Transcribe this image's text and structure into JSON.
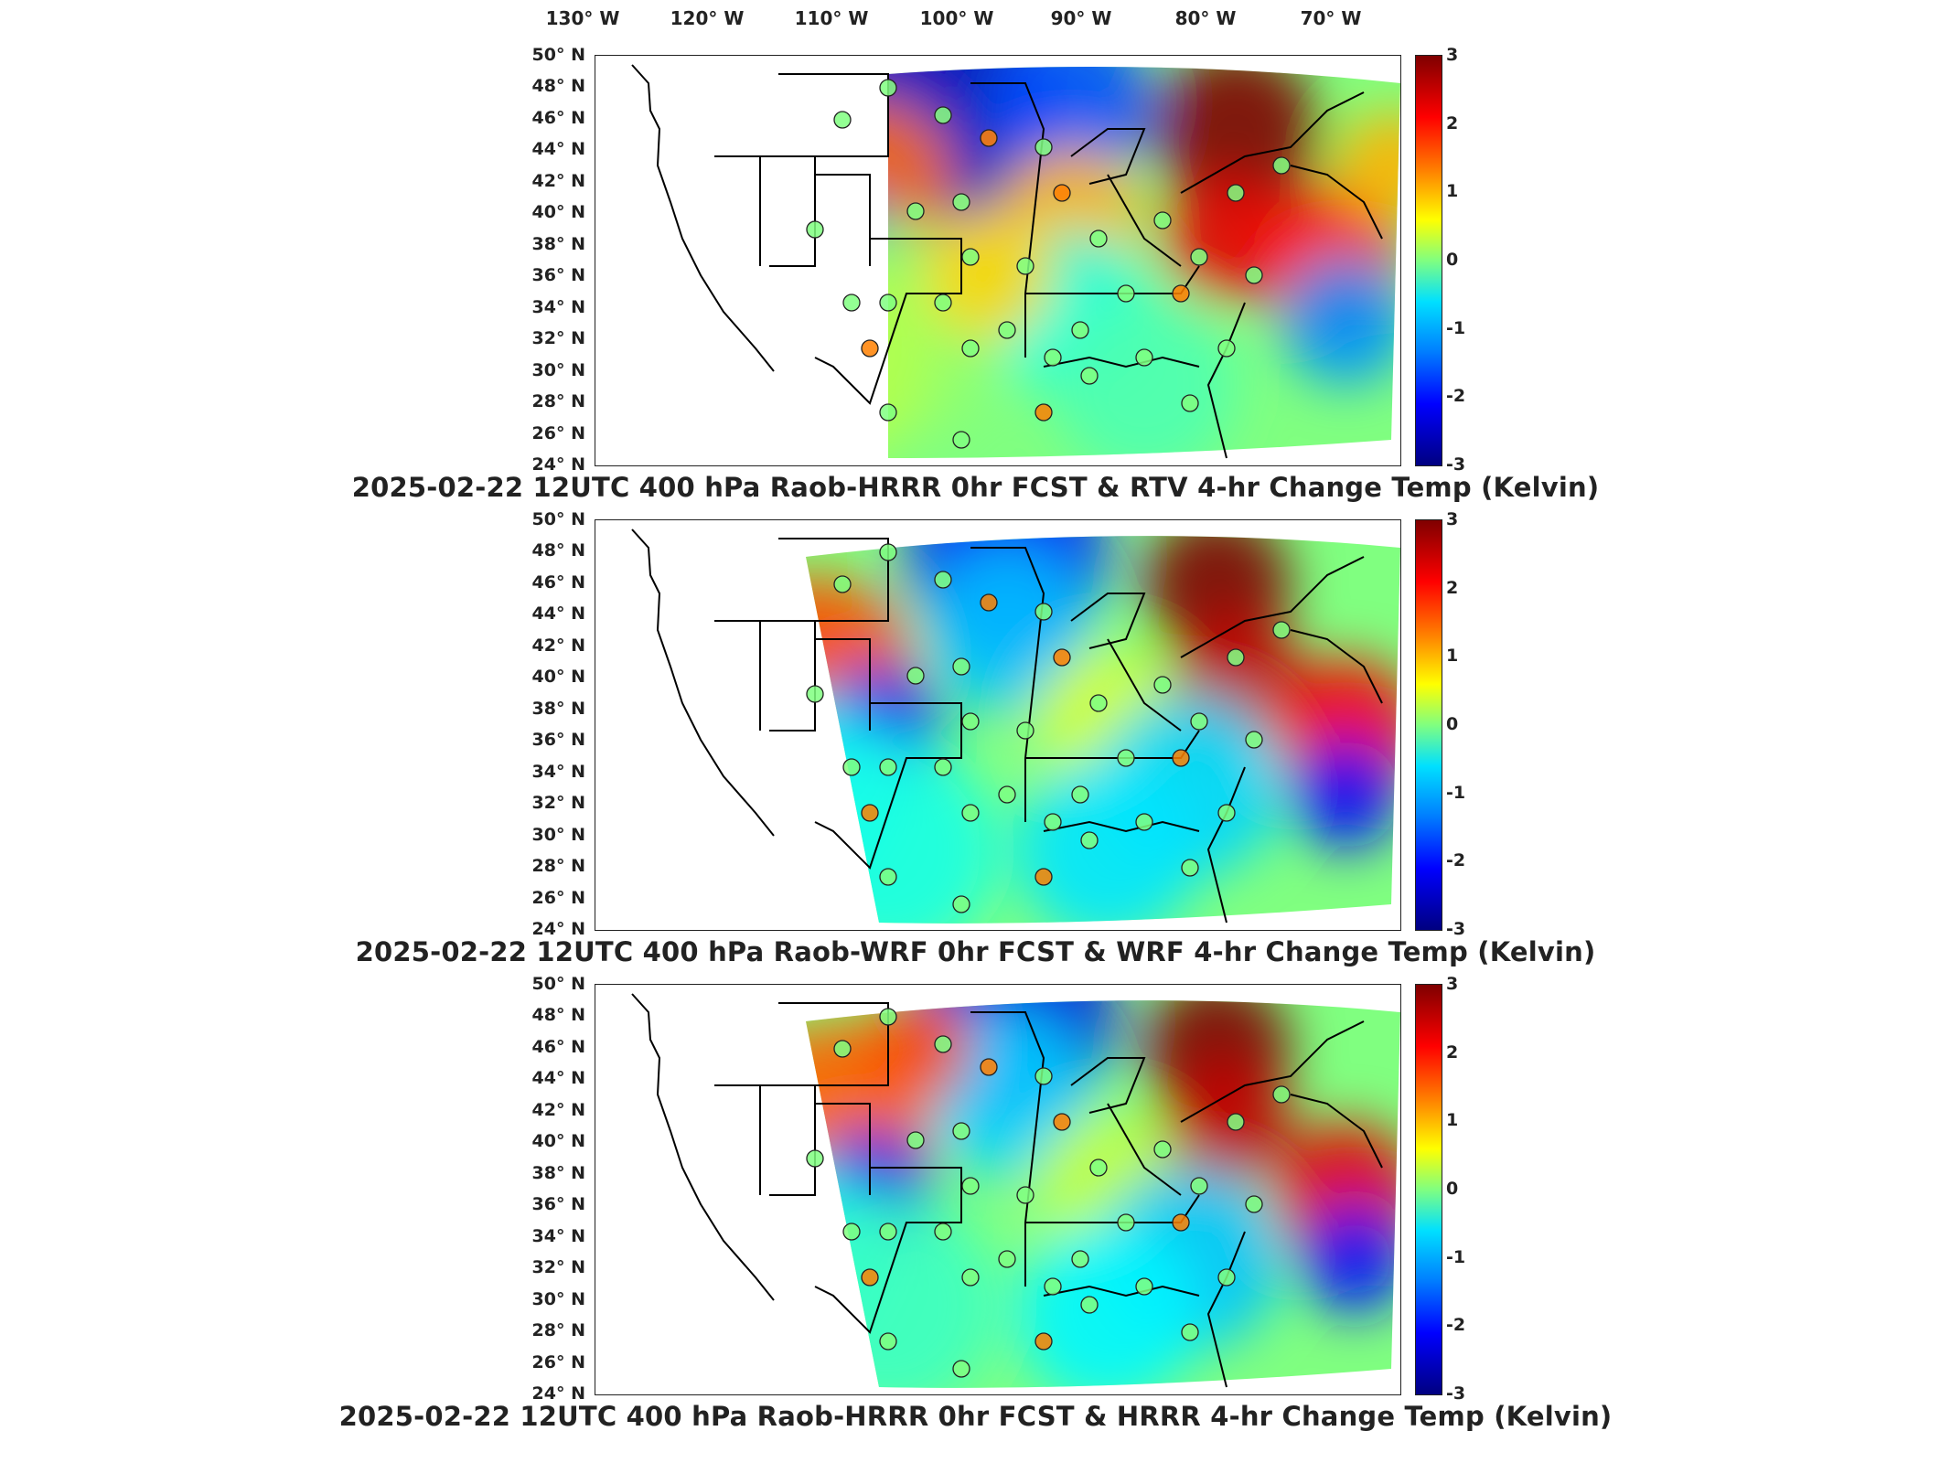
{
  "figure": {
    "lon_labels": [
      "130° W",
      "120° W",
      "110° W",
      "100° W",
      "90° W",
      "80° W",
      "70° W"
    ],
    "lat_labels": [
      "50° N",
      "48° N",
      "46° N",
      "44° N",
      "42° N",
      "40° N",
      "38° N",
      "36° N",
      "34° N",
      "32° N",
      "30° N",
      "28° N",
      "26° N",
      "24° N"
    ],
    "colorbar_ticks": [
      "3",
      "2",
      "1",
      "0",
      "-1",
      "-2",
      "-3"
    ],
    "colorbar_range": [
      -3,
      3
    ],
    "colormap": "jet",
    "colors": {
      "warm_max": "#7f0000",
      "cold_min": "#000080",
      "zero": "#80ff80"
    }
  },
  "panels": [
    {
      "title": "2025-02-22 12UTC 400 hPa Raob-HRRR 0hr FCST & RTV 4-hr Change Temp (Kelvin)",
      "field_pattern": "rtv"
    },
    {
      "title": "2025-02-22 12UTC 400 hPa Raob-WRF 0hr FCST & WRF 4-hr Change Temp (Kelvin)",
      "field_pattern": "wrf"
    },
    {
      "title": "2025-02-22 12UTC 400 hPa Raob-HRRR 0hr FCST & HRRR 4-hr Change Temp (Kelvin)",
      "field_pattern": "hrrr"
    }
  ]
}
